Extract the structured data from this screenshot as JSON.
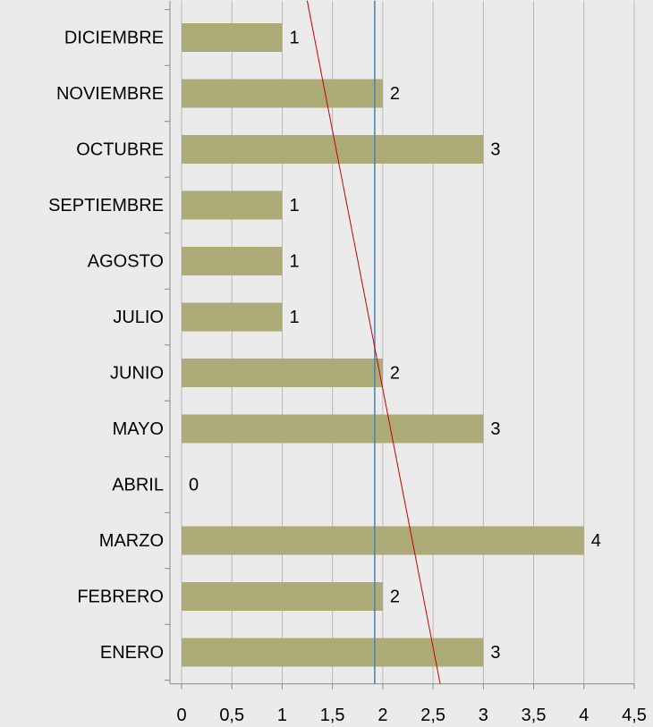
{
  "chart_data": {
    "type": "barh",
    "categories": [
      "ENERO",
      "FEBRERO",
      "MARZO",
      "ABRIL",
      "MAYO",
      "JUNIO",
      "JULIO",
      "AGOSTO",
      "SEPTIEMBRE",
      "OCTUBRE",
      "NOVIEMBRE",
      "DICIEMBRE"
    ],
    "values": [
      3,
      2,
      4,
      0,
      3,
      2,
      1,
      1,
      1,
      3,
      2,
      1
    ],
    "color": "#adab78",
    "xlim": [
      0,
      4.5
    ],
    "xticks": [
      0,
      {
        "value": 0.5,
        "label": "0,5"
      },
      1,
      {
        "value": 1.5,
        "label": "1,5"
      },
      2,
      {
        "value": 2.5,
        "label": "2,5"
      },
      3,
      {
        "value": 3.5,
        "label": "3,5"
      },
      4,
      {
        "value": 4.5,
        "label": "4,5"
      }
    ],
    "grid": true,
    "average": {
      "value": 1.92,
      "color": "#4f7fa6"
    },
    "trendline": {
      "values": [
        2.51,
        1.32
      ],
      "color": "#cc0000"
    }
  }
}
